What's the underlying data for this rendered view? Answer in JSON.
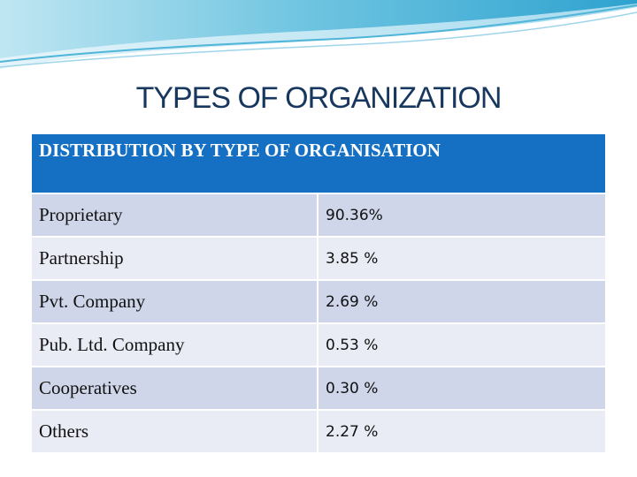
{
  "title": "TYPES OF ORGANIZATION",
  "table": {
    "header": "DISTRIBUTION BY TYPE OF ORGANISATION",
    "rows": [
      {
        "label": "Proprietary",
        "value": "90.36%"
      },
      {
        "label": "Partnership",
        "value": "3.85 %"
      },
      {
        "label": "Pvt. Company",
        "value": "2.69 %"
      },
      {
        "label": "Pub. Ltd. Company",
        "value": "0.53 %"
      },
      {
        "label": "Cooperatives",
        "value": "0.30 %"
      },
      {
        "label": "Others",
        "value": "2.27 %"
      }
    ]
  },
  "colors": {
    "header_bg": "#1570c4",
    "row_odd": "#cfd6ea",
    "row_even": "#e9ecf5",
    "title": "#17375e",
    "wave": "#4fb5d8"
  }
}
